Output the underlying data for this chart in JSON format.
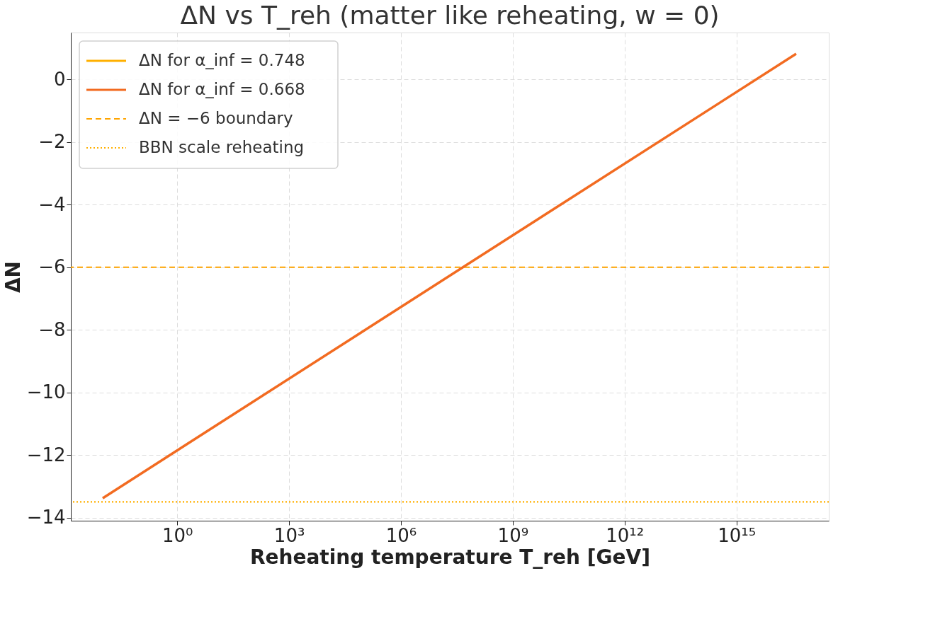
{
  "chart_data": {
    "type": "line",
    "title": "ΔN vs T_reh (matter like reheating, w = 0)",
    "xlabel": "Reheating temperature T_reh [GeV]",
    "ylabel": "ΔN",
    "x": [
      0.01,
      46000000,
      40000000000000000
    ],
    "series": [
      {
        "name": "ΔN for α_inf = 0.748",
        "color": "#ffb000",
        "values": [
          null,
          null,
          null
        ]
      },
      {
        "name": "ΔN for α_inf = 0.668",
        "color": "#f26b21",
        "values": [
          -13.38,
          -6.0,
          0.82
        ]
      }
    ],
    "log": "x",
    "xlim": [
      0.0014,
      300000000000000000
    ],
    "ylim": [
      -14.1,
      1.5
    ],
    "xticks": [
      {
        "value": 1,
        "label": "10⁰"
      },
      {
        "value": 1000,
        "label": "10³"
      },
      {
        "value": 1000000,
        "label": "10⁶"
      },
      {
        "value": 1000000000,
        "label": "10⁹"
      },
      {
        "value": 1000000000000,
        "label": "10¹²"
      },
      {
        "value": 1000000000000000,
        "label": "10¹⁵"
      }
    ],
    "yticks": [
      {
        "value": -14,
        "label": "−14"
      },
      {
        "value": -12,
        "label": "−12"
      },
      {
        "value": -10,
        "label": "−10"
      },
      {
        "value": -8,
        "label": "−8"
      },
      {
        "value": -6,
        "label": "−6"
      },
      {
        "value": -4,
        "label": "−4"
      },
      {
        "value": -2,
        "label": "−2"
      },
      0
    ],
    "ref_lines": [
      {
        "axis": "y",
        "value": -6,
        "label": "ΔN = −6 boundary",
        "color": "#ffa500",
        "line_style": "dashed"
      },
      {
        "axis": "y",
        "value": -13.5,
        "label": "BBN scale reheating",
        "color": "#ffb000",
        "line_style": "dotted"
      }
    ],
    "grid": true,
    "legend": "top left",
    "line_style": "solid",
    "marker": "none"
  }
}
